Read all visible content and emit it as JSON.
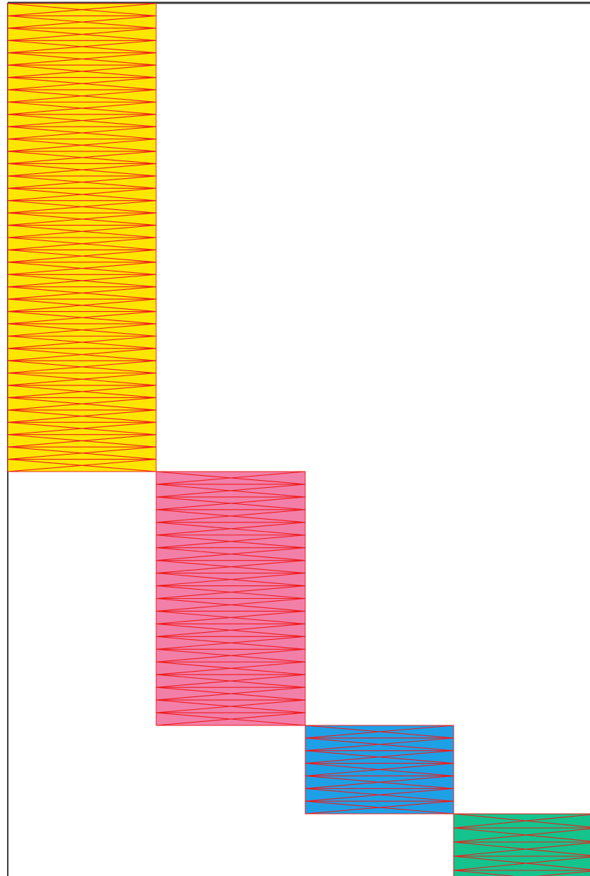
{
  "diagram": {
    "type": "stepped-hatched-blocks",
    "stroke_color": "#ee1c1c",
    "frame_color": "#3a3a3a",
    "blocks": [
      {
        "name": "block-yellow",
        "fill": "#ffe600",
        "bands": 38
      },
      {
        "name": "block-pink",
        "fill": "#f27fa8",
        "bands": 20
      },
      {
        "name": "block-blue",
        "fill": "#1ea0e6",
        "bands": 7
      },
      {
        "name": "block-green",
        "fill": "#14c48c",
        "bands": 5
      }
    ]
  }
}
